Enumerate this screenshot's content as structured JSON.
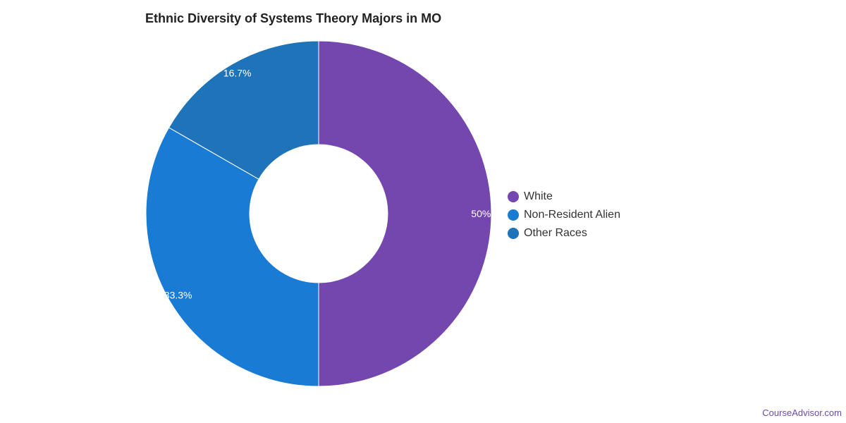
{
  "chart_data": {
    "type": "pie",
    "variant": "donut",
    "title": "Ethnic Diversity of Systems Theory Majors in MO",
    "categories": [
      "White",
      "Non-Resident Alien",
      "Other Races"
    ],
    "values": [
      50,
      33.3,
      16.7
    ],
    "labels": [
      "50%",
      "33.3%",
      "16.7%"
    ],
    "colors": [
      "#7447ae",
      "#1a7bd4",
      "#1e73b9"
    ],
    "legend_position": "right"
  },
  "footer": {
    "brand": "CourseAdvisor.com"
  }
}
